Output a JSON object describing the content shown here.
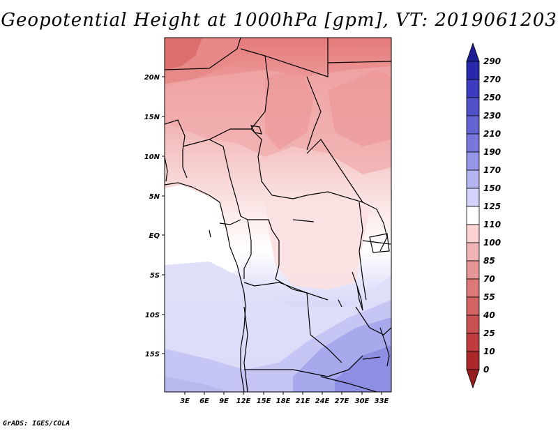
{
  "title": "Geopotential Height at 1000hPa [gpm], VT: 2019061203",
  "credit": "GrADS: IGES/COLA",
  "map": {
    "lon_labels": [
      "3E",
      "6E",
      "9E",
      "12E",
      "15E",
      "18E",
      "21E",
      "24E",
      "27E",
      "30E",
      "33E"
    ],
    "lat_labels": [
      "20N",
      "15N",
      "10N",
      "5N",
      "EQ",
      "5S",
      "10S",
      "15S"
    ]
  },
  "colorbar": {
    "labels": [
      "290",
      "270",
      "250",
      "230",
      "210",
      "190",
      "170",
      "150",
      "125",
      "110",
      "100",
      "85",
      "70",
      "55",
      "40",
      "25",
      "10",
      "0"
    ],
    "colors": [
      "#1e1e96",
      "#2828aa",
      "#3c3cbe",
      "#5050c8",
      "#6464d2",
      "#7878dc",
      "#9696e6",
      "#b4b4f0",
      "#d2d2fa",
      "#ffffff",
      "#ffd2d2",
      "#f0b4b4",
      "#e69696",
      "#dc7878",
      "#d26464",
      "#c85050",
      "#be3c3c",
      "#aa2828",
      "#961e1e"
    ]
  }
}
